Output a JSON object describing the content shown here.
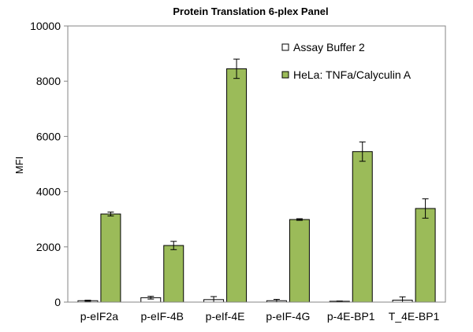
{
  "chart_data": {
    "type": "bar",
    "title": "Protein Translation 6-plex Panel",
    "ylabel": "MFI",
    "xlabel": "",
    "ylim": [
      0,
      10000
    ],
    "yticks": [
      0,
      2000,
      4000,
      6000,
      8000,
      10000
    ],
    "grid": false,
    "legend_position": "top-right",
    "categories": [
      "p-eIF2a",
      "p-eIF-4B",
      "p-eIf-4E",
      "p-eIF-4G",
      "p-4E-BP1",
      "T_4E-BP1"
    ],
    "series": [
      {
        "name": "Assay Buffer 2",
        "color": "#ffffff",
        "values": [
          50,
          160,
          90,
          50,
          30,
          70
        ],
        "errors": [
          20,
          50,
          110,
          50,
          10,
          120
        ]
      },
      {
        "name": "HeLa: TNFa/Calyculin A",
        "color": "#9bbb59",
        "values": [
          3190,
          2050,
          8450,
          2990,
          5450,
          3390
        ],
        "errors": [
          70,
          150,
          350,
          30,
          350,
          350
        ]
      }
    ]
  }
}
